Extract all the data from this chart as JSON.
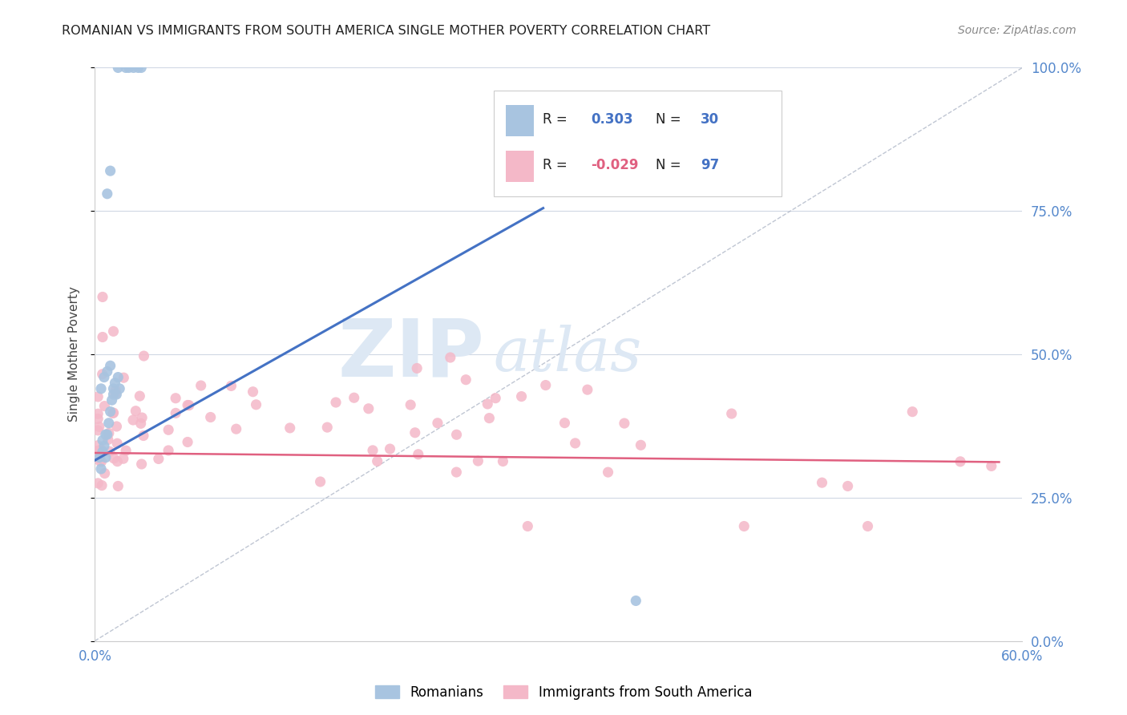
{
  "title": "ROMANIAN VS IMMIGRANTS FROM SOUTH AMERICA SINGLE MOTHER POVERTY CORRELATION CHART",
  "source": "Source: ZipAtlas.com",
  "ylabel_label": "Single Mother Poverty",
  "legend_labels": [
    "Romanians",
    "Immigrants from South America"
  ],
  "r_romanian": 0.303,
  "n_romanian": 30,
  "r_immigrant": -0.029,
  "n_immigrant": 97,
  "romanian_color": "#a8c4e0",
  "immigrant_color": "#f4b8c8",
  "regression_line_romanian": "#4472c4",
  "regression_line_immigrant": "#e06080",
  "diagonal_line_color": "#b0b8c8",
  "background_color": "#ffffff",
  "watermark_zip": "ZIP",
  "watermark_atlas": "atlas",
  "watermark_color": "#dde8f4",
  "xlim": [
    0.0,
    0.6
  ],
  "ylim": [
    0.0,
    1.0
  ],
  "yticks": [
    0.0,
    0.25,
    0.5,
    0.75,
    1.0
  ],
  "ytick_labels": [
    "0.0%",
    "25.0%",
    "50.0%",
    "75.0%",
    "100.0%"
  ],
  "xtick_labels": [
    "0.0%",
    "60.0%"
  ],
  "rom_line_x": [
    0.0,
    0.29
  ],
  "rom_line_y": [
    0.315,
    0.755
  ],
  "imm_line_x": [
    0.0,
    0.585
  ],
  "imm_line_y": [
    0.328,
    0.312
  ]
}
